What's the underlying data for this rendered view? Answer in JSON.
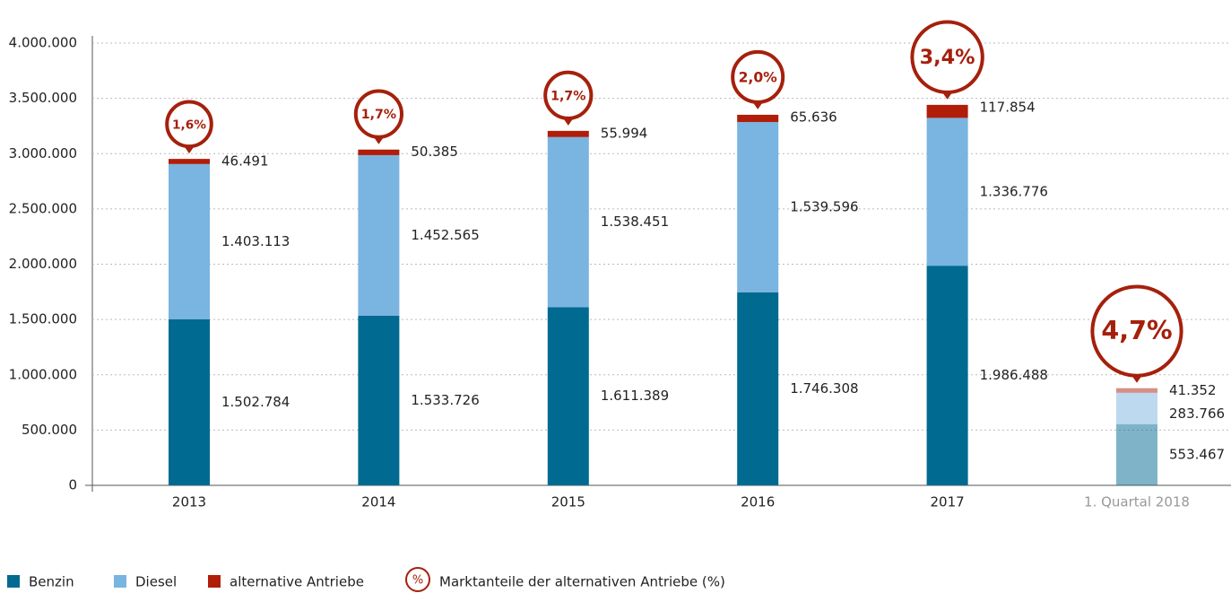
{
  "chart_data": {
    "type": "stacked_bar",
    "categories": [
      "2013",
      "2014",
      "2015",
      "2016",
      "2017",
      "1. Quartal 2018"
    ],
    "category_opacity": [
      1,
      1,
      1,
      1,
      1,
      0.5
    ],
    "series": [
      {
        "name": "Benzin",
        "color": "#006a91",
        "values": [
          1502784,
          1533726,
          1611389,
          1746308,
          1986488,
          553467
        ],
        "value_labels": [
          "1.502.784",
          "1.533.726",
          "1.611.389",
          "1.746.308",
          "1.986.488",
          "553.467"
        ]
      },
      {
        "name": "Diesel",
        "color": "#7ab4e0",
        "values": [
          1403113,
          1452565,
          1538451,
          1539596,
          1336776,
          283766
        ],
        "value_labels": [
          "1.403.113",
          "1.452.565",
          "1.538.451",
          "1.539.596",
          "1.336.776",
          "283.766"
        ]
      },
      {
        "name": "alternative Antriebe",
        "color": "#b01e0a",
        "values": [
          46491,
          50385,
          55994,
          65636,
          117854,
          41352
        ],
        "value_labels": [
          "46.491",
          "50.385",
          "55.994",
          "65.636",
          "117.854",
          "41.352"
        ]
      }
    ],
    "market_share": {
      "name": "Marktanteile der alternativen Antriebe (%)",
      "symbol": "%",
      "color": "#a5200c",
      "values": [
        1.6,
        1.7,
        1.7,
        2.0,
        3.4,
        4.7
      ],
      "value_labels": [
        "1,6%",
        "1,7%",
        "1,7%",
        "2,0%",
        "3,4%",
        "4,7%"
      ]
    },
    "ylim": [
      0,
      4000000
    ],
    "yticks": [
      0,
      {
        "value": 500000,
        "label": "500.000"
      },
      {
        "value": 1000000,
        "label": "1.000.000"
      },
      {
        "value": 1500000,
        "label": "1.500.000"
      },
      {
        "value": 2000000,
        "label": "2.000.000"
      },
      {
        "value": 2500000,
        "label": "2.500.000"
      },
      {
        "value": 3000000,
        "label": "3.000.000"
      },
      {
        "value": 3500000,
        "label": "3.500.000"
      },
      {
        "value": 4000000,
        "label": "4.000.000"
      }
    ],
    "grid": true
  }
}
